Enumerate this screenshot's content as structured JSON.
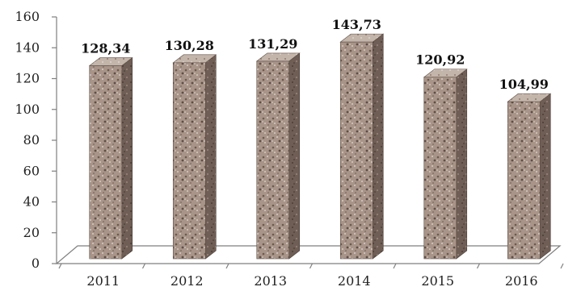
{
  "chart_data": {
    "type": "bar",
    "title": "",
    "xlabel": "",
    "ylabel": "",
    "categories": [
      "2011",
      "2012",
      "2013",
      "2014",
      "2015",
      "2016"
    ],
    "values": [
      128.34,
      130.28,
      131.29,
      143.73,
      120.92,
      104.99
    ],
    "data_labels": [
      "128,34",
      "130,28",
      "131,29",
      "143,73",
      "120,92",
      "104,99"
    ],
    "ylim": [
      0,
      160
    ],
    "yticks": [
      0,
      20,
      40,
      60,
      80,
      100,
      120,
      140,
      160
    ],
    "grid": false,
    "legend": "none",
    "style": "3d-columns",
    "colors": {
      "bar_front": "#a89488",
      "bar_side": "#6f5e55",
      "bar_top": "#c7b8ae",
      "axis": "#7f7f7f"
    }
  }
}
